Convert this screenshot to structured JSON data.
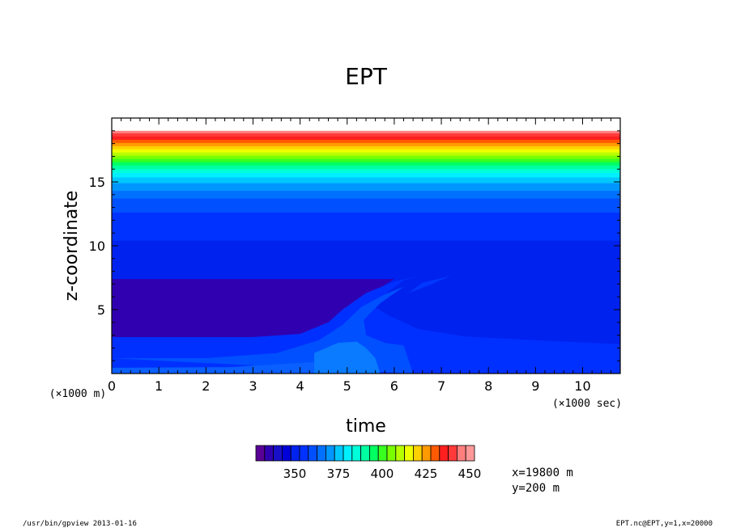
{
  "chart_data": {
    "type": "heatmap",
    "title": "EPT",
    "xlabel": "time",
    "ylabel": "z-coordinate",
    "x_unit": "(×1000 sec)",
    "y_unit": "(×1000 m)",
    "xlim": [
      0,
      10.8
    ],
    "ylim": [
      0,
      20
    ],
    "x_ticks": [
      "0",
      "1",
      "2",
      "3",
      "4",
      "5",
      "6",
      "7",
      "8",
      "9",
      "10"
    ],
    "y_ticks": [
      "5",
      "10",
      "15"
    ],
    "grid": false,
    "bands": [
      {
        "z0": 19.0,
        "z1": 20.0,
        "color": "#ffffff"
      },
      {
        "z0": 18.8,
        "z1": 19.0,
        "color": "#ff7f7f"
      },
      {
        "z0": 18.55,
        "z1": 18.8,
        "color": "#ff3a3a"
      },
      {
        "z0": 18.3,
        "z1": 18.55,
        "color": "#ff1f1f"
      },
      {
        "z0": 18.05,
        "z1": 18.3,
        "color": "#ff5a00"
      },
      {
        "z0": 17.8,
        "z1": 18.05,
        "color": "#ff9a00"
      },
      {
        "z0": 17.55,
        "z1": 17.8,
        "color": "#ffd000"
      },
      {
        "z0": 17.3,
        "z1": 17.55,
        "color": "#f0ff00"
      },
      {
        "z0": 17.05,
        "z1": 17.3,
        "color": "#b8ff00"
      },
      {
        "z0": 16.8,
        "z1": 17.05,
        "color": "#7aff00"
      },
      {
        "z0": 16.55,
        "z1": 16.8,
        "color": "#38ff20"
      },
      {
        "z0": 16.3,
        "z1": 16.55,
        "color": "#00ff60"
      },
      {
        "z0": 16.0,
        "z1": 16.3,
        "color": "#00ffa0"
      },
      {
        "z0": 15.7,
        "z1": 16.0,
        "color": "#00ffd8"
      },
      {
        "z0": 15.35,
        "z1": 15.7,
        "color": "#00f0ff"
      },
      {
        "z0": 14.9,
        "z1": 15.35,
        "color": "#00c8ff"
      },
      {
        "z0": 14.3,
        "z1": 14.9,
        "color": "#0096ff"
      },
      {
        "z0": 13.7,
        "z1": 14.3,
        "color": "#0070ff"
      },
      {
        "z0": 12.6,
        "z1": 13.7,
        "color": "#0050ff"
      },
      {
        "z0": 10.4,
        "z1": 12.6,
        "color": "#0032ff"
      },
      {
        "z0": 0.0,
        "z1": 10.4,
        "color": "#0022ee"
      }
    ],
    "features": [
      {
        "name": "cold-pool",
        "color": "#3000b0",
        "points": [
          [
            0,
            7.4
          ],
          [
            6.0,
            7.4
          ],
          [
            5.3,
            5.8
          ],
          [
            4.6,
            4.0
          ],
          [
            4.0,
            3.1
          ],
          [
            3.0,
            2.85
          ],
          [
            0,
            2.85
          ]
        ]
      },
      {
        "name": "lower-layer",
        "color": "#0030ff",
        "points": [
          [
            0,
            2.85
          ],
          [
            3.0,
            2.85
          ],
          [
            4.0,
            3.1
          ],
          [
            4.6,
            4.0
          ],
          [
            4.9,
            5.0
          ],
          [
            5.4,
            6.3
          ],
          [
            6.0,
            7.2
          ],
          [
            6.6,
            7.7
          ],
          [
            6.2,
            7.3
          ],
          [
            5.8,
            6.2
          ],
          [
            5.5,
            5.4
          ],
          [
            5.9,
            4.5
          ],
          [
            6.5,
            3.5
          ],
          [
            7.5,
            2.9
          ],
          [
            9.0,
            2.6
          ],
          [
            10.8,
            2.3
          ],
          [
            10.8,
            0
          ],
          [
            0,
            0
          ]
        ]
      },
      {
        "name": "side-streak",
        "color": "#0038ff",
        "points": [
          [
            6.3,
            6.3
          ],
          [
            6.6,
            7.1
          ],
          [
            7.2,
            7.65
          ],
          [
            6.8,
            7.0
          ]
        ]
      },
      {
        "name": "gust-front",
        "color": "#0050ff",
        "points": [
          [
            0,
            1.2
          ],
          [
            2.0,
            1.2
          ],
          [
            3.5,
            1.6
          ],
          [
            4.4,
            2.6
          ],
          [
            4.9,
            3.8
          ],
          [
            5.3,
            5.2
          ],
          [
            5.8,
            6.2
          ],
          [
            6.2,
            6.8
          ],
          [
            5.7,
            5.5
          ],
          [
            5.35,
            4.2
          ],
          [
            5.4,
            3.0
          ],
          [
            5.8,
            2.4
          ],
          [
            6.2,
            2.2
          ],
          [
            6.4,
            0
          ]
        ]
      },
      {
        "name": "surface-core",
        "color": "#0a7aff",
        "points": [
          [
            4.3,
            0
          ],
          [
            4.3,
            1.6
          ],
          [
            4.8,
            2.4
          ],
          [
            5.2,
            2.5
          ],
          [
            5.4,
            2.0
          ],
          [
            5.6,
            1.2
          ],
          [
            5.7,
            0
          ]
        ]
      },
      {
        "name": "surface-strip",
        "color": "#0a5fff",
        "points": [
          [
            0,
            0
          ],
          [
            0,
            0.45
          ],
          [
            2.5,
            0.5
          ],
          [
            4.3,
            0.9
          ],
          [
            4.3,
            0
          ]
        ]
      }
    ]
  },
  "colorbar": {
    "colors": [
      "#5a0096",
      "#3000b0",
      "#1810c8",
      "#0000d8",
      "#0022ee",
      "#0032ff",
      "#0050ff",
      "#0070ff",
      "#0096ff",
      "#00c8ff",
      "#00f0ff",
      "#00ffd8",
      "#00ffa0",
      "#00ff60",
      "#38ff20",
      "#7aff00",
      "#b8ff00",
      "#f0ff00",
      "#ffd000",
      "#ff9a00",
      "#ff5a00",
      "#ff1f1f",
      "#ff3a3a",
      "#ff7f7f",
      "#ff9999"
    ],
    "labels": [
      "350",
      "375",
      "400",
      "425",
      "450"
    ],
    "label_index": [
      5,
      10,
      15,
      20,
      25
    ]
  },
  "annotation": {
    "x_line": "x=19800 m",
    "y_line": "y=200 m"
  },
  "footer": {
    "left": "/usr/bin/gpview  2013-01-16",
    "right": "EPT.nc@EPT,y=1,x=20000"
  }
}
